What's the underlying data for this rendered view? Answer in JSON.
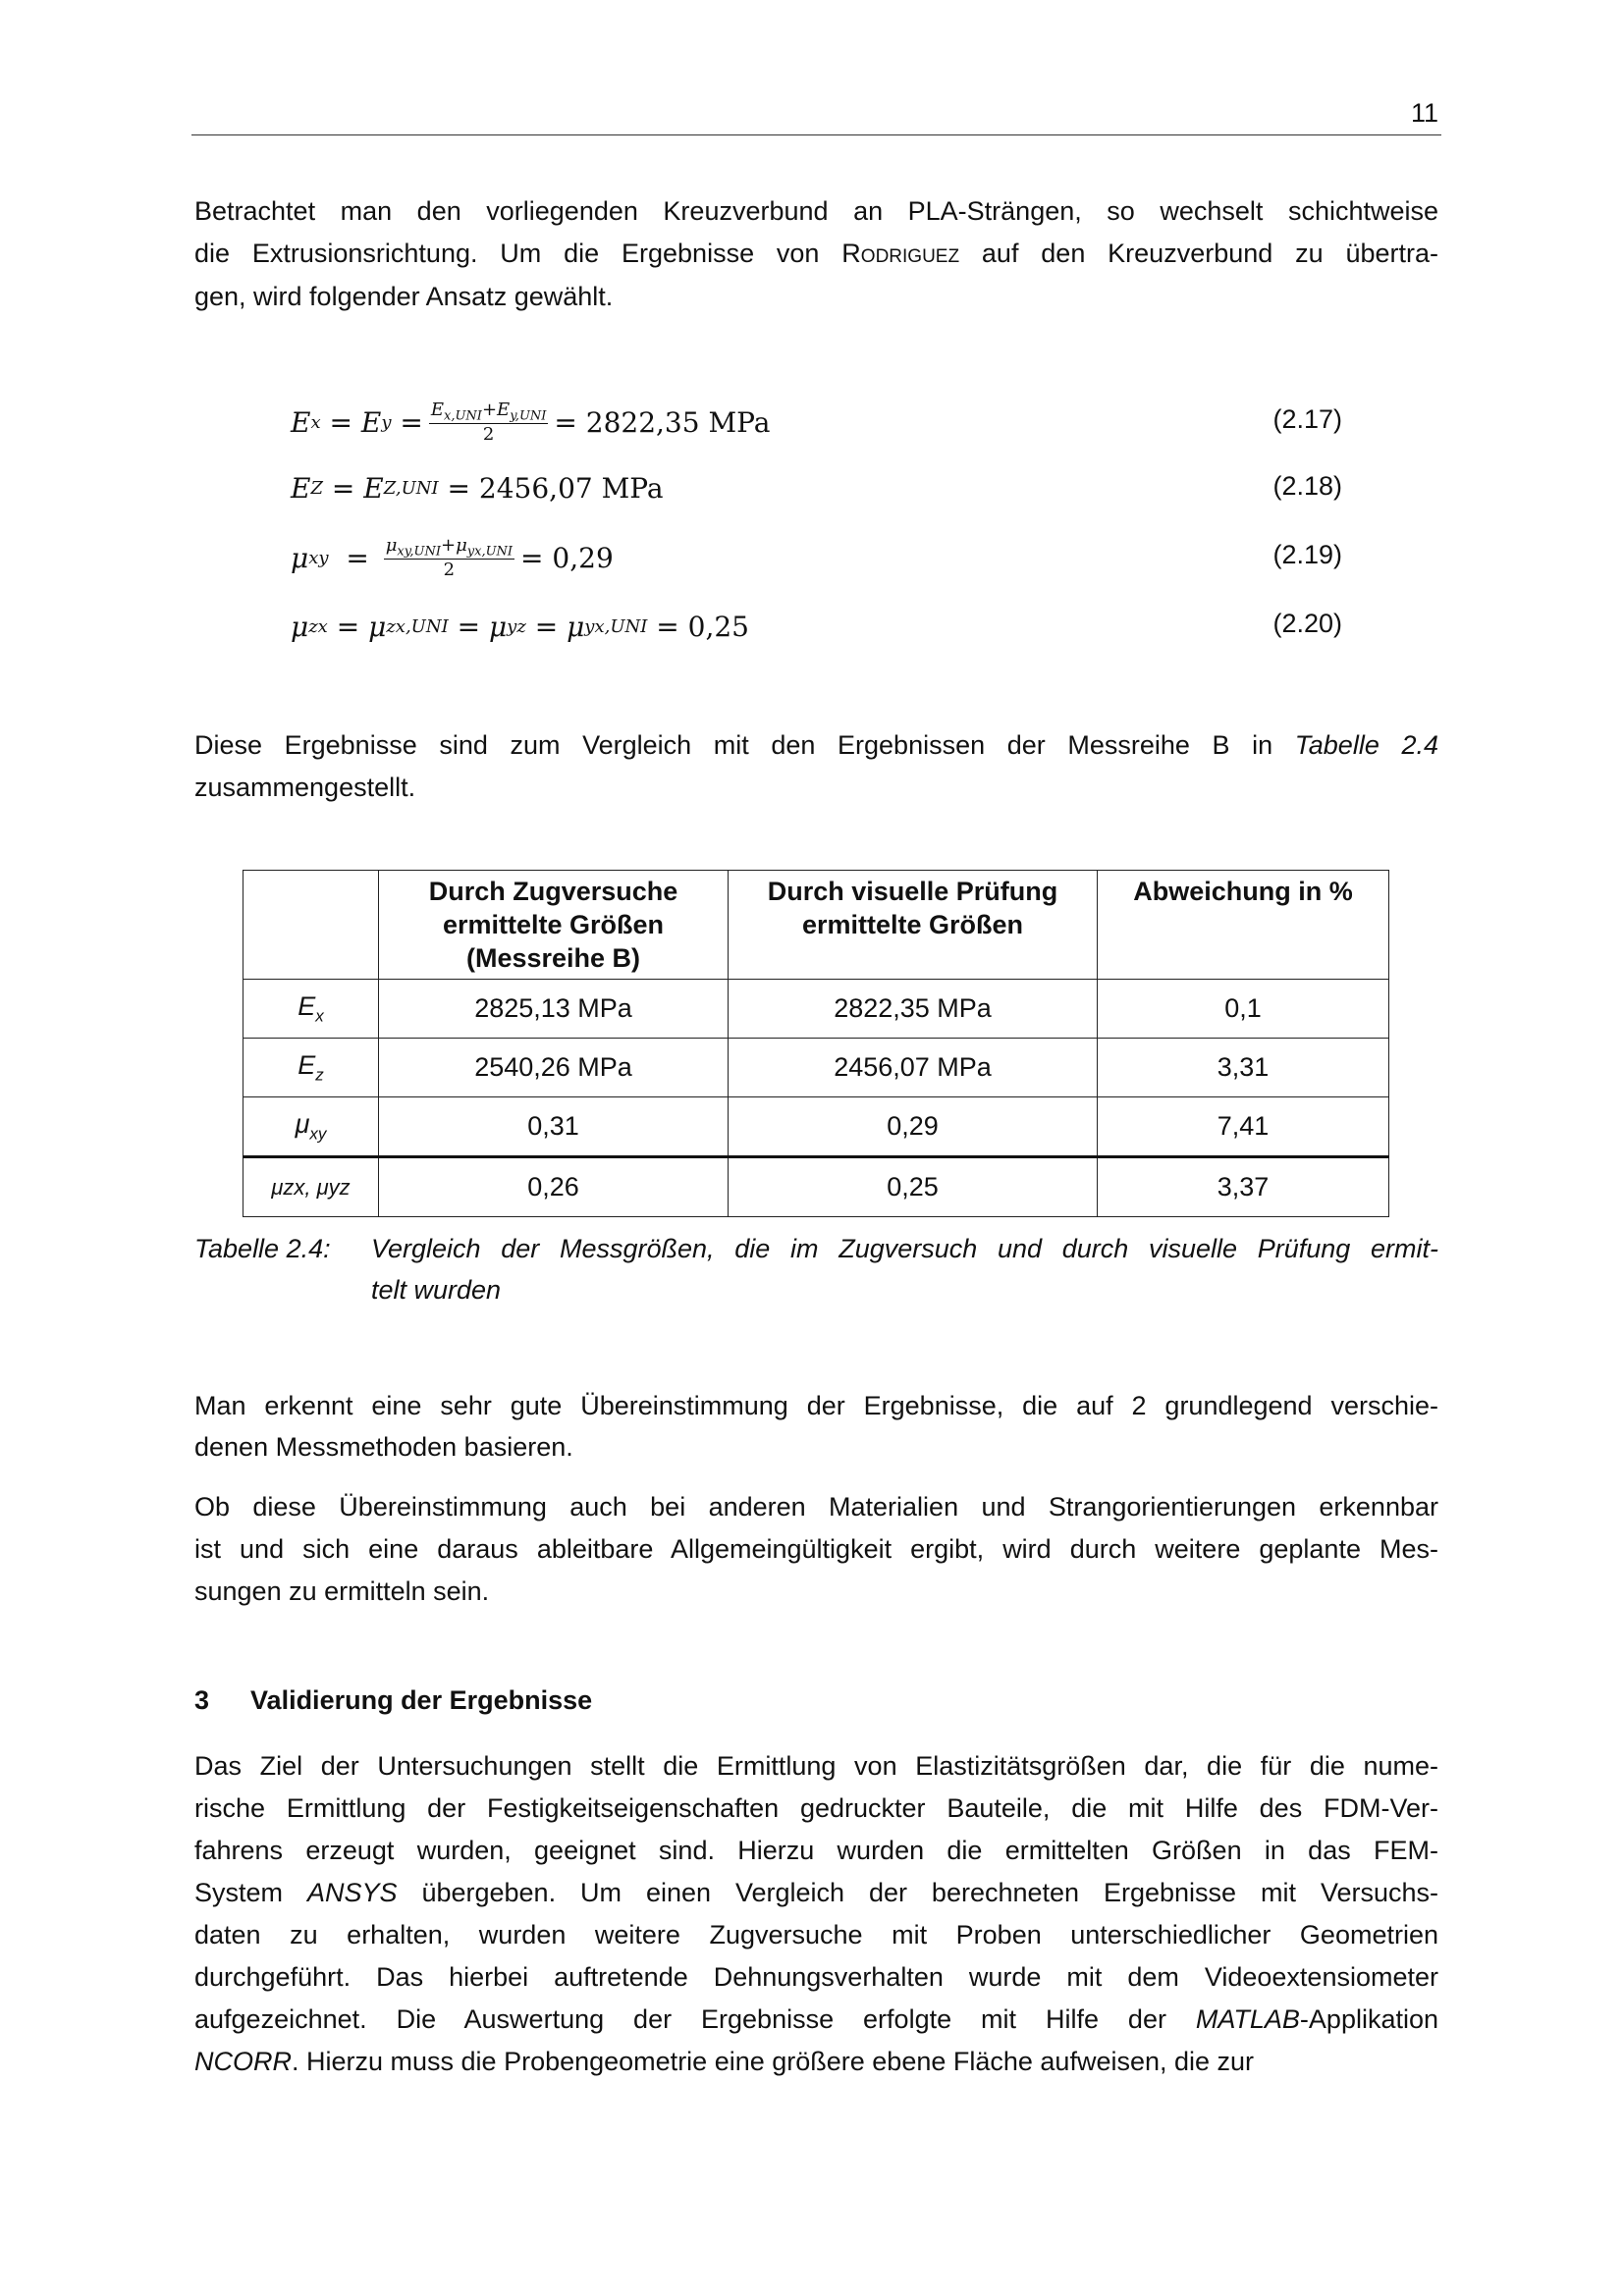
{
  "page_number": "11",
  "para1": [
    "Betrachtet man den vorliegenden Kreuzverbund an PLA-Strängen, so wechselt schichtweise",
    {
      "a": "die Extrusionsrichtung. Um die Ergebnisse von ",
      "sc": "Rodriguez",
      "b": " auf den Kreuzverbund zu übertra-"
    },
    "gen, wird folgender Ansatz gewählt."
  ],
  "equations": [
    {
      "number": "(2.17)",
      "result": "= 2822,35 MPa"
    },
    {
      "number": "(2.18)",
      "result": "2456,07 MPa"
    },
    {
      "number": "(2.19)",
      "result": "= 0,29"
    },
    {
      "number": "(2.20)",
      "result": "= 0,25"
    }
  ],
  "para2": [
    {
      "a": "Diese Ergebnisse sind zum Vergleich mit den Ergebnissen der Messreihe B in ",
      "i": "Tabelle 2.4"
    },
    "zusammengestellt."
  ],
  "table": {
    "headers": [
      "",
      "Durch Zugversuche ermittelte Größen (Messreihe B)",
      "Durch visuelle Prüfung ermittelte Größen",
      "Abweichung in %"
    ],
    "rows": [
      {
        "symbol": "E",
        "sub": "x",
        "values": [
          "2825,13 MPa",
          "2822,35 MPa",
          "0,1"
        ]
      },
      {
        "symbol": "E",
        "sub": "z",
        "values": [
          "2540,26 MPa",
          "2456,07 MPa",
          "3,31"
        ]
      },
      {
        "symbol": "μ",
        "sub": "xy",
        "values": [
          "0,31",
          "0,29",
          "7,41"
        ]
      },
      {
        "symbol": "μzx, μyz",
        "sub": "",
        "values": [
          "0,26",
          "0,25",
          "3,37"
        ]
      }
    ]
  },
  "caption": {
    "label": "Tabelle 2.4:",
    "lines": [
      "Vergleich der Messgrößen, die im Zugversuch und durch visuelle Prüfung ermit-",
      "telt wurden"
    ]
  },
  "para3": [
    "Man erkennt eine sehr gute Übereinstimmung der Ergebnisse, die auf 2 grundlegend verschie-",
    "denen Messmethoden basieren."
  ],
  "para4": [
    "Ob diese Übereinstimmung auch bei anderen Materialien und Strangorientierungen erkennbar",
    "ist und sich eine daraus ableitbare Allgemeingültigkeit ergibt, wird durch weitere geplante Mes-",
    "sungen zu ermitteln sein."
  ],
  "section": {
    "number": "3",
    "title": "Validierung der Ergebnisse"
  },
  "para5": [
    "Das Ziel der Untersuchungen stellt die Ermittlung von Elastizitätsgrößen dar, die für die nume-",
    "rische Ermittlung der Festigkeitseigenschaften gedruckter Bauteile, die mit Hilfe des FDM-Ver-",
    "fahrens erzeugt wurden, geeignet sind. Hierzu wurden die ermittelten Größen in das FEM-",
    {
      "a": "System ",
      "i": "ANSYS",
      "b": " übergeben. Um einen Vergleich der berechneten Ergebnisse mit Versuchs-"
    },
    "daten zu erhalten, wurden weitere Zugversuche mit Proben unterschiedlicher Geometrien",
    "durchgeführt. Das hierbei auftretende Dehnungsverhalten wurde mit dem Videoextensiometer",
    {
      "a": "aufgezeichnet. Die Auswertung der Ergebnisse erfolgte mit Hilfe der ",
      "i": "MATLAB",
      "b": "-Applikation"
    },
    {
      "a": "",
      "i": "NCORR",
      "b": ". Hierzu muss die Probengeometrie eine größere ebene Fläche aufweisen, die zur"
    }
  ]
}
